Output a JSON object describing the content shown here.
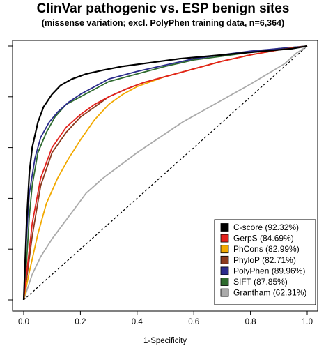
{
  "chart_data": {
    "type": "line",
    "title": "ClinVar pathogenic vs. ESP benign sites",
    "subtitle": "(missense variation; excl. PolyPhen training data, n=6,364)",
    "xlabel": "1-Specificity",
    "ylabel": "",
    "xlim": [
      0,
      1
    ],
    "ylim": [
      0,
      1
    ],
    "x_ticks": [
      "0.0",
      "0.2",
      "0.4",
      "0.6",
      "0.8",
      "1.0"
    ],
    "y_ticks_labeled": false,
    "grid": false,
    "legend_position": "bottom-right",
    "diagonal_reference": true,
    "series": [
      {
        "name": "C-score (92.32%)",
        "color": "#000000",
        "x": [
          0,
          0.01,
          0.02,
          0.03,
          0.05,
          0.07,
          0.1,
          0.13,
          0.17,
          0.22,
          0.28,
          0.35,
          0.45,
          0.55,
          0.65,
          0.75,
          0.85,
          0.95,
          1
        ],
        "y": [
          0,
          0.3,
          0.5,
          0.6,
          0.7,
          0.76,
          0.81,
          0.845,
          0.87,
          0.89,
          0.905,
          0.92,
          0.935,
          0.95,
          0.96,
          0.97,
          0.98,
          0.99,
          1
        ]
      },
      {
        "name": "GerpS (84.69%)",
        "color": "#e3211c",
        "x": [
          0,
          0.01,
          0.03,
          0.06,
          0.1,
          0.15,
          0.2,
          0.25,
          0.3,
          0.36,
          0.42,
          0.5,
          0.6,
          0.7,
          0.8,
          0.9,
          1
        ],
        "y": [
          0,
          0.1,
          0.3,
          0.48,
          0.6,
          0.68,
          0.73,
          0.77,
          0.8,
          0.83,
          0.855,
          0.88,
          0.91,
          0.94,
          0.965,
          0.985,
          1
        ]
      },
      {
        "name": "PhCons (82.99%)",
        "color": "#f2a900",
        "x": [
          0,
          0.02,
          0.05,
          0.08,
          0.12,
          0.16,
          0.2,
          0.25,
          0.3,
          0.35,
          0.4,
          0.5,
          0.6,
          0.7,
          0.8,
          0.9,
          1
        ],
        "y": [
          0,
          0.11,
          0.26,
          0.38,
          0.48,
          0.56,
          0.63,
          0.71,
          0.77,
          0.81,
          0.84,
          0.88,
          0.91,
          0.94,
          0.965,
          0.985,
          1
        ]
      },
      {
        "name": "PhyloP (82.71%)",
        "color": "#8b3a1e",
        "x": [
          0,
          0.01,
          0.03,
          0.06,
          0.1,
          0.15,
          0.2,
          0.25,
          0.3,
          0.36,
          0.42,
          0.5,
          0.6,
          0.7,
          0.8,
          0.9,
          1
        ],
        "y": [
          0,
          0.08,
          0.25,
          0.45,
          0.58,
          0.66,
          0.72,
          0.76,
          0.8,
          0.83,
          0.855,
          0.88,
          0.91,
          0.94,
          0.965,
          0.985,
          1
        ]
      },
      {
        "name": "PolyPhen (89.96%)",
        "color": "#2b2b8c",
        "x": [
          0,
          0.01,
          0.02,
          0.04,
          0.06,
          0.09,
          0.12,
          0.16,
          0.2,
          0.25,
          0.3,
          0.4,
          0.5,
          0.6,
          0.7,
          0.8,
          0.9,
          1
        ],
        "y": [
          0,
          0.25,
          0.42,
          0.56,
          0.64,
          0.7,
          0.74,
          0.78,
          0.81,
          0.84,
          0.87,
          0.9,
          0.925,
          0.95,
          0.965,
          0.98,
          0.99,
          1
        ]
      },
      {
        "name": "SIFT (87.85%)",
        "color": "#2f6b2f",
        "x": [
          0,
          0.01,
          0.02,
          0.03,
          0.05,
          0.08,
          0.11,
          0.15,
          0.2,
          0.25,
          0.3,
          0.4,
          0.5,
          0.6,
          0.7,
          0.8,
          0.9,
          1
        ],
        "y": [
          0,
          0.15,
          0.33,
          0.45,
          0.58,
          0.66,
          0.72,
          0.77,
          0.8,
          0.83,
          0.86,
          0.89,
          0.92,
          0.945,
          0.96,
          0.975,
          0.99,
          1
        ]
      },
      {
        "name": "Grantham (62.31%)",
        "color": "#aaaaaa",
        "x": [
          0,
          0.03,
          0.06,
          0.1,
          0.14,
          0.18,
          0.22,
          0.28,
          0.34,
          0.4,
          0.48,
          0.56,
          0.64,
          0.72,
          0.8,
          0.86,
          0.92,
          0.96,
          1
        ],
        "y": [
          0,
          0.1,
          0.17,
          0.24,
          0.3,
          0.36,
          0.42,
          0.48,
          0.53,
          0.58,
          0.64,
          0.7,
          0.75,
          0.8,
          0.85,
          0.89,
          0.93,
          0.97,
          1
        ]
      }
    ]
  }
}
